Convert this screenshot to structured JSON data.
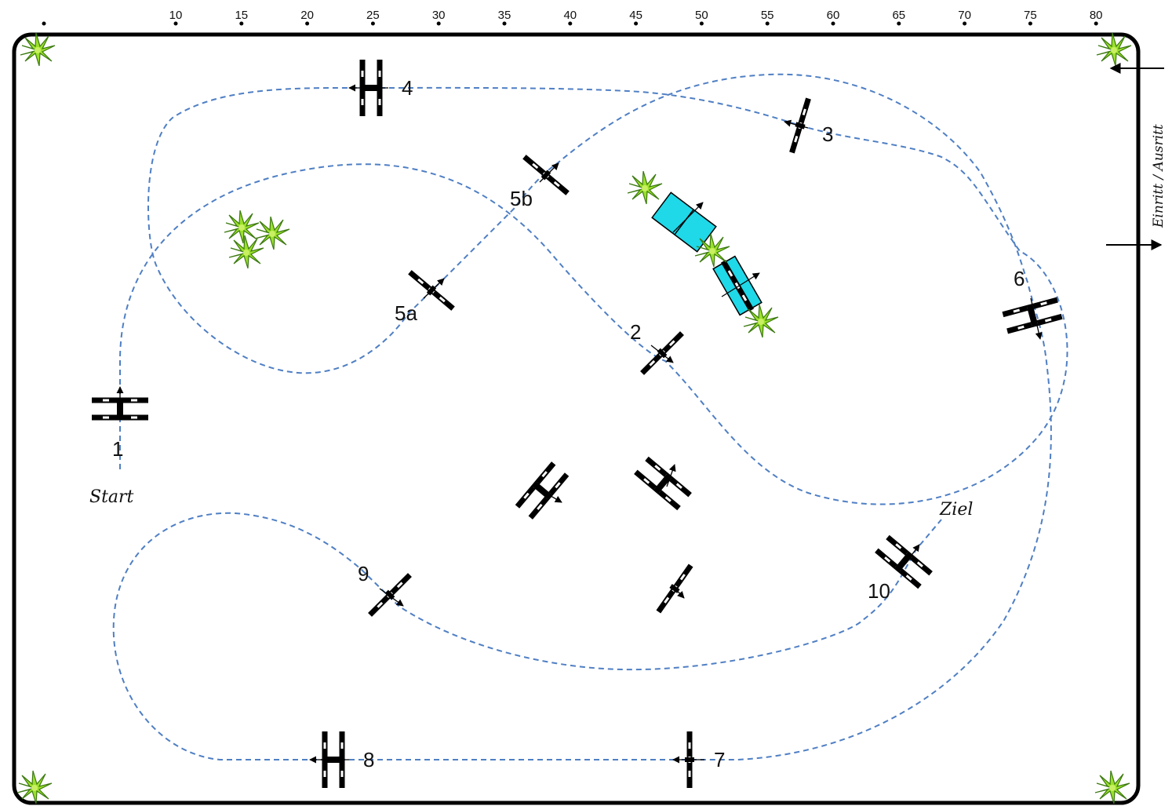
{
  "ruler": {
    "ticks": [
      "10",
      "15",
      "20",
      "25",
      "30",
      "35",
      "40",
      "45",
      "50",
      "55",
      "60",
      "65",
      "70",
      "75",
      "80"
    ]
  },
  "side_label": "Einritt / Ausritt",
  "start_label": "Start",
  "finish_label": "Ziel",
  "obstacles": [
    {
      "id": "1",
      "label": "1"
    },
    {
      "id": "2",
      "label": "2"
    },
    {
      "id": "3",
      "label": "3"
    },
    {
      "id": "4",
      "label": "4"
    },
    {
      "id": "5a",
      "label": "5a"
    },
    {
      "id": "5b",
      "label": "5b"
    },
    {
      "id": "6",
      "label": "6"
    },
    {
      "id": "7",
      "label": "7"
    },
    {
      "id": "8",
      "label": "8"
    },
    {
      "id": "9",
      "label": "9"
    },
    {
      "id": "10",
      "label": "10"
    }
  ],
  "colors": {
    "route": "#4f7fc4",
    "water": "#1fd8e8",
    "plant": "#9ae02a",
    "fence": "#000000"
  },
  "icons": [
    "plant-icon",
    "water-jump-icon",
    "arrow-icon"
  ]
}
